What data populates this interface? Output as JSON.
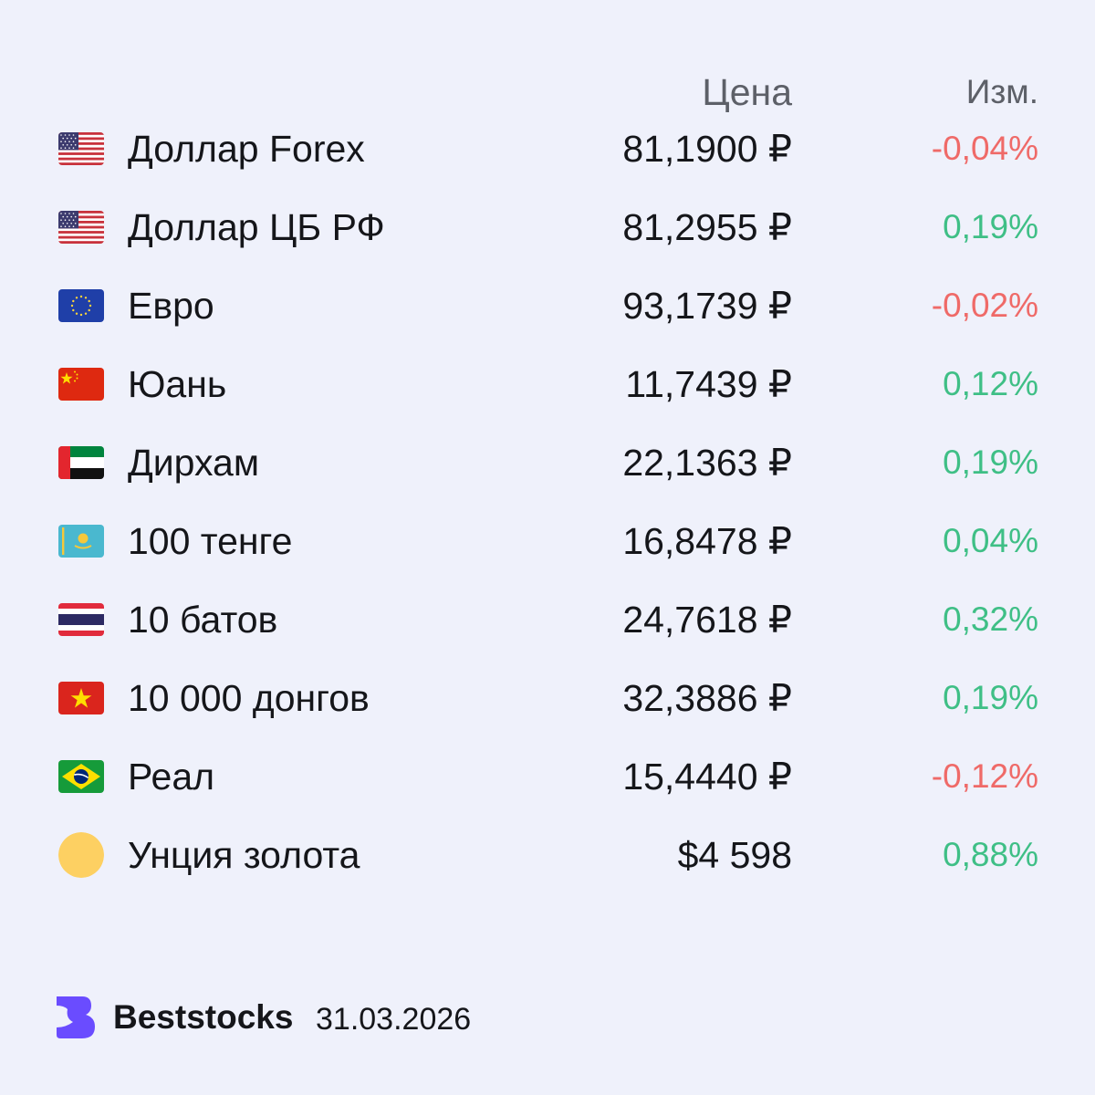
{
  "header": {
    "price_label": "Цена",
    "change_label": "Изм."
  },
  "colors": {
    "up": "#3fbf86",
    "down": "#ef6a68",
    "background": "#eff1fb",
    "brand": "#6a4cff"
  },
  "rows": [
    {
      "icon": "us-flag-icon",
      "name": "Доллар Forex",
      "price": "81,1900 ₽",
      "change": "-0,04%",
      "direction": "down"
    },
    {
      "icon": "us-flag-icon",
      "name": "Доллар ЦБ РФ",
      "price": "81,2955 ₽",
      "change": "0,19%",
      "direction": "up"
    },
    {
      "icon": "eu-flag-icon",
      "name": "Евро",
      "price": "93,1739 ₽",
      "change": "-0,02%",
      "direction": "down"
    },
    {
      "icon": "cn-flag-icon",
      "name": "Юань",
      "price": "11,7439 ₽",
      "change": "0,12%",
      "direction": "up"
    },
    {
      "icon": "ae-flag-icon",
      "name": "Дирхам",
      "price": "22,1363 ₽",
      "change": "0,19%",
      "direction": "up"
    },
    {
      "icon": "kz-flag-icon",
      "name": "100 тенге",
      "price": "16,8478 ₽",
      "change": "0,04%",
      "direction": "up"
    },
    {
      "icon": "th-flag-icon",
      "name": "10 батов",
      "price": "24,7618 ₽",
      "change": "0,32%",
      "direction": "up"
    },
    {
      "icon": "vn-flag-icon",
      "name": "10 000 донгов",
      "price": "32,3886 ₽",
      "change": "0,19%",
      "direction": "up"
    },
    {
      "icon": "br-flag-icon",
      "name": "Реал",
      "price": "15,4440 ₽",
      "change": "-0,12%",
      "direction": "down"
    },
    {
      "icon": "gold-coin-icon",
      "name": "Унция золота",
      "price": "$4 598",
      "change": "0,88%",
      "direction": "up"
    }
  ],
  "footer": {
    "brand": "Beststocks",
    "date": "31.03.2026",
    "logo_icon": "beststocks-logo-icon"
  }
}
